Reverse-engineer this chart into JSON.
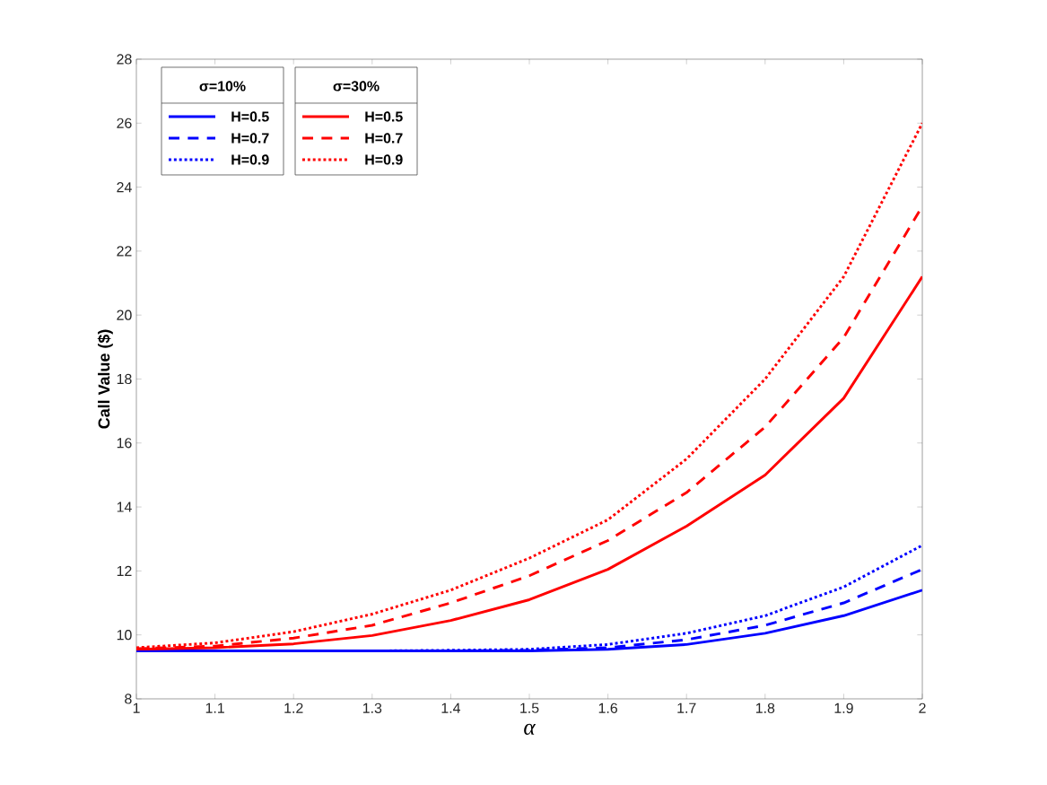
{
  "chart_data": {
    "type": "line",
    "xlabel": "α",
    "ylabel": "Call Value ($)",
    "legend_title": [
      "σ=10%",
      "σ=30%"
    ],
    "legend": "top left",
    "x": [
      1.0,
      1.1,
      1.2,
      1.3,
      1.4,
      1.5,
      1.6,
      1.7,
      1.8,
      1.9,
      2.0
    ],
    "xlim": [
      1,
      2
    ],
    "xticks": [
      1,
      1.1,
      1.2,
      1.3,
      1.4,
      1.5,
      1.6,
      1.7,
      1.8,
      1.9,
      2
    ],
    "ylim": [
      8,
      28
    ],
    "yticks": [
      8,
      10,
      12,
      14,
      16,
      18,
      20,
      22,
      24,
      26,
      28
    ],
    "series": [
      {
        "name": "H=0.5",
        "color": "#0000ff",
        "line_style": "solid",
        "values": [
          9.5,
          9.5,
          9.5,
          9.5,
          9.5,
          9.5,
          9.55,
          9.7,
          10.05,
          10.6,
          11.4
        ]
      },
      {
        "name": "H=0.7",
        "color": "#0000ff",
        "line_style": "dashed",
        "values": [
          9.5,
          9.5,
          9.5,
          9.5,
          9.5,
          9.52,
          9.6,
          9.85,
          10.3,
          11.0,
          12.05
        ]
      },
      {
        "name": "H=0.9",
        "color": "#0000ff",
        "line_style": "dotted",
        "values": [
          9.5,
          9.5,
          9.5,
          9.5,
          9.52,
          9.55,
          9.7,
          10.05,
          10.6,
          11.5,
          12.8
        ]
      },
      {
        "name": "H=0.5",
        "color": "#ff0000",
        "line_style": "solid",
        "values": [
          9.55,
          9.6,
          9.72,
          9.98,
          10.45,
          11.1,
          12.05,
          13.4,
          15.0,
          17.4,
          21.2
        ]
      },
      {
        "name": "H=0.7",
        "color": "#ff0000",
        "line_style": "dashed",
        "values": [
          9.57,
          9.65,
          9.9,
          10.3,
          11.0,
          11.85,
          12.95,
          14.45,
          16.5,
          19.3,
          23.4
        ]
      },
      {
        "name": "H=0.9",
        "color": "#ff0000",
        "line_style": "dotted",
        "values": [
          9.6,
          9.75,
          10.1,
          10.65,
          11.4,
          12.4,
          13.6,
          15.5,
          18.0,
          21.2,
          26.0
        ]
      }
    ]
  }
}
